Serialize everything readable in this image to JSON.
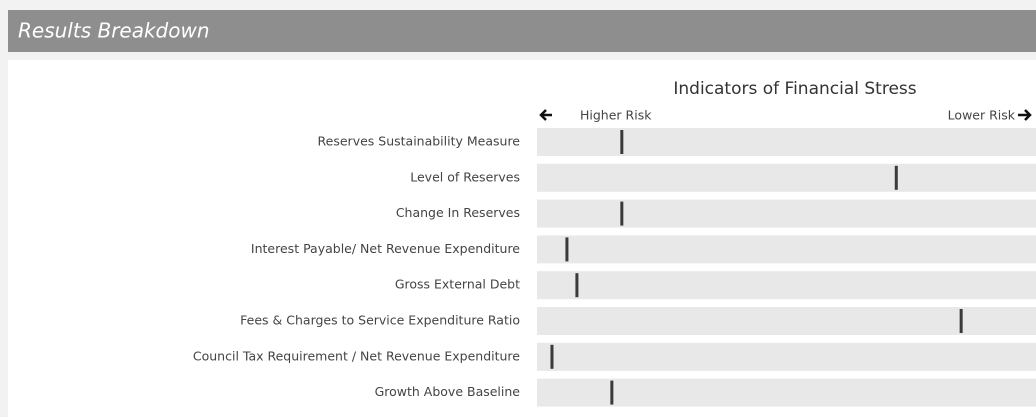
{
  "header": {
    "title": "Results Breakdown"
  },
  "chart_data": {
    "type": "marker",
    "title": "Indicators of Financial Stress",
    "left_label": "Higher Risk",
    "right_label": "Lower Risk",
    "categories": [
      "Reserves Sustainability Measure",
      "Level of Reserves",
      "Change In Reserves",
      "Interest Payable/ Net Revenue Expenditure",
      "Gross External Debt",
      "Fees & Charges to Service Expenditure Ratio",
      "Council Tax Requirement / Net Revenue Expenditure",
      "Growth Above Baseline"
    ],
    "values": [
      17,
      72,
      17,
      6,
      8,
      85,
      3,
      15
    ],
    "xlim": [
      0,
      100
    ],
    "color": "#3a3a3a",
    "track_color": "#e8e8e8"
  }
}
